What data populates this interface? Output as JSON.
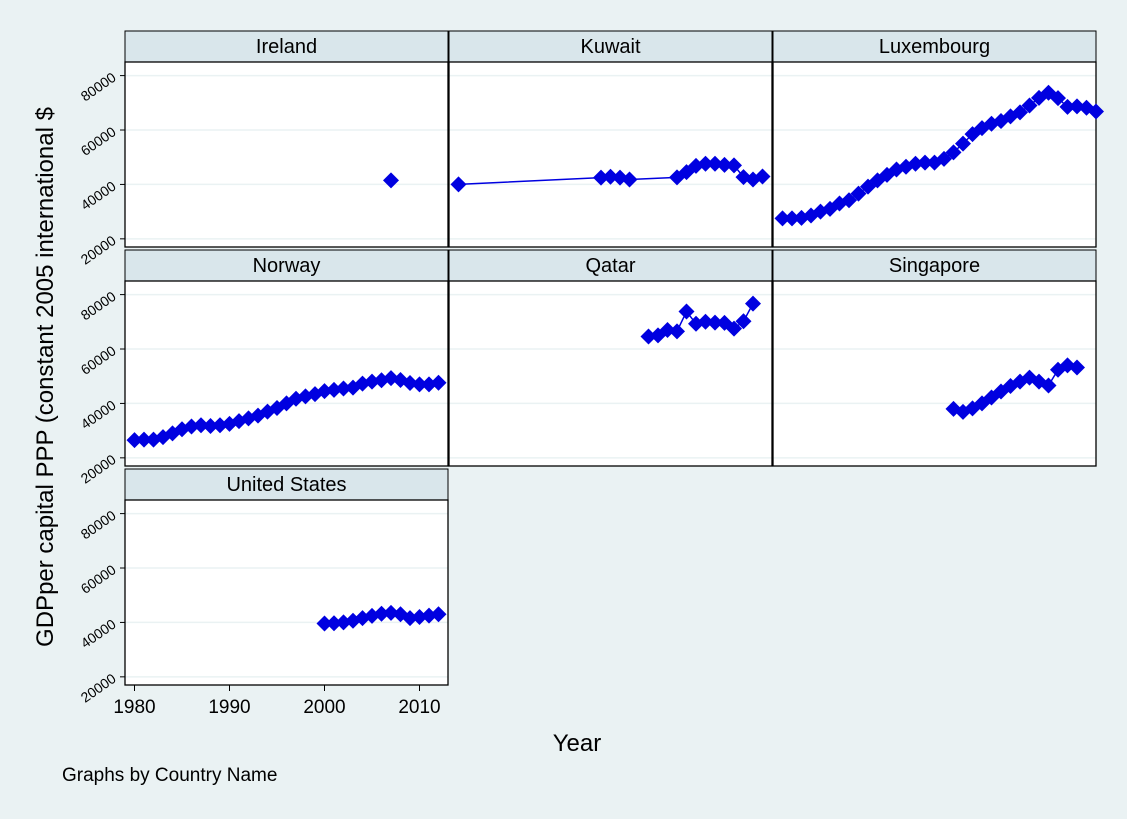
{
  "chart_data": {
    "type": "scatter",
    "ylabel": "GDPper capital PPP (constant 2005 international $",
    "xlabel": "Year",
    "note": "Graphs by Country Name",
    "xlim": [
      1979,
      2013
    ],
    "ylim": [
      17000,
      85000
    ],
    "xticks": [
      1980,
      1990,
      2000,
      2010
    ],
    "yticks": [
      20000,
      40000,
      60000,
      80000
    ],
    "grid": true,
    "marker": "diamond",
    "color": "#0000e0",
    "panels": [
      {
        "name": "Ireland",
        "connect": false,
        "points": [
          [
            2007,
            41500
          ]
        ]
      },
      {
        "name": "Kuwait",
        "connect": true,
        "points": [
          [
            1980,
            40000
          ],
          [
            1995,
            42500
          ],
          [
            1996,
            42800
          ],
          [
            1997,
            42500
          ],
          [
            1998,
            41800
          ],
          [
            2003,
            42600
          ],
          [
            2004,
            44500
          ],
          [
            2005,
            46800
          ],
          [
            2006,
            47600
          ],
          [
            2007,
            47600
          ],
          [
            2008,
            47200
          ],
          [
            2009,
            47000
          ],
          [
            2010,
            42700
          ],
          [
            2011,
            41800
          ],
          [
            2012,
            42900
          ]
        ]
      },
      {
        "name": "Luxembourg",
        "connect": true,
        "points": [
          [
            1980,
            27500
          ],
          [
            1981,
            27500
          ],
          [
            1982,
            27700
          ],
          [
            1983,
            28600
          ],
          [
            1984,
            30000
          ],
          [
            1985,
            31000
          ],
          [
            1986,
            33000
          ],
          [
            1987,
            34200
          ],
          [
            1988,
            36600
          ],
          [
            1989,
            39200
          ],
          [
            1990,
            41500
          ],
          [
            1991,
            43500
          ],
          [
            1992,
            45500
          ],
          [
            1993,
            46500
          ],
          [
            1994,
            47600
          ],
          [
            1995,
            48000
          ],
          [
            1996,
            48000
          ],
          [
            1997,
            49400
          ],
          [
            1998,
            51800
          ],
          [
            1999,
            55000
          ],
          [
            2000,
            58500
          ],
          [
            2001,
            60700
          ],
          [
            2002,
            62300
          ],
          [
            2003,
            63300
          ],
          [
            2004,
            65000
          ],
          [
            2005,
            66500
          ],
          [
            2006,
            69000
          ],
          [
            2007,
            71800
          ],
          [
            2008,
            73700
          ],
          [
            2009,
            71700
          ],
          [
            2010,
            68500
          ],
          [
            2011,
            68700
          ],
          [
            2012,
            68200
          ],
          [
            2013,
            66800
          ]
        ]
      },
      {
        "name": "Norway",
        "connect": true,
        "points": [
          [
            1980,
            26500
          ],
          [
            1981,
            26700
          ],
          [
            1982,
            26700
          ],
          [
            1983,
            27600
          ],
          [
            1984,
            29000
          ],
          [
            1985,
            30500
          ],
          [
            1986,
            31500
          ],
          [
            1987,
            32000
          ],
          [
            1988,
            31700
          ],
          [
            1989,
            32000
          ],
          [
            1990,
            32500
          ],
          [
            1991,
            33500
          ],
          [
            1992,
            34500
          ],
          [
            1993,
            35500
          ],
          [
            1994,
            37000
          ],
          [
            1995,
            38300
          ],
          [
            1996,
            40000
          ],
          [
            1997,
            41700
          ],
          [
            1998,
            42600
          ],
          [
            1999,
            43400
          ],
          [
            2000,
            44500
          ],
          [
            2001,
            45000
          ],
          [
            2002,
            45500
          ],
          [
            2003,
            45800
          ],
          [
            2004,
            47300
          ],
          [
            2005,
            48000
          ],
          [
            2006,
            48500
          ],
          [
            2007,
            49300
          ],
          [
            2008,
            48600
          ],
          [
            2009,
            47500
          ],
          [
            2010,
            47000
          ],
          [
            2011,
            47000
          ],
          [
            2012,
            47600
          ]
        ]
      },
      {
        "name": "Qatar",
        "connect": true,
        "points": [
          [
            2000,
            64600
          ],
          [
            2001,
            65000
          ],
          [
            2002,
            67000
          ],
          [
            2003,
            66500
          ],
          [
            2004,
            73800
          ],
          [
            2005,
            69300
          ],
          [
            2006,
            70000
          ],
          [
            2007,
            69700
          ],
          [
            2008,
            69600
          ],
          [
            2009,
            67500
          ],
          [
            2010,
            70200
          ],
          [
            2011,
            76700
          ]
        ]
      },
      {
        "name": "Singapore",
        "connect": true,
        "points": [
          [
            1998,
            38000
          ],
          [
            1999,
            36900
          ],
          [
            2000,
            38200
          ],
          [
            2001,
            40000
          ],
          [
            2002,
            42200
          ],
          [
            2003,
            44400
          ],
          [
            2004,
            46400
          ],
          [
            2005,
            48000
          ],
          [
            2006,
            49500
          ],
          [
            2007,
            48000
          ],
          [
            2008,
            46600
          ],
          [
            2009,
            52400
          ],
          [
            2010,
            54000
          ],
          [
            2011,
            53200
          ]
        ]
      },
      {
        "name": "United States",
        "connect": true,
        "points": [
          [
            2000,
            39600
          ],
          [
            2001,
            39700
          ],
          [
            2002,
            40000
          ],
          [
            2003,
            40600
          ],
          [
            2004,
            41600
          ],
          [
            2005,
            42400
          ],
          [
            2006,
            43200
          ],
          [
            2007,
            43500
          ],
          [
            2008,
            43000
          ],
          [
            2009,
            41600
          ],
          [
            2010,
            42000
          ],
          [
            2011,
            42500
          ],
          [
            2012,
            43000
          ]
        ]
      }
    ]
  }
}
